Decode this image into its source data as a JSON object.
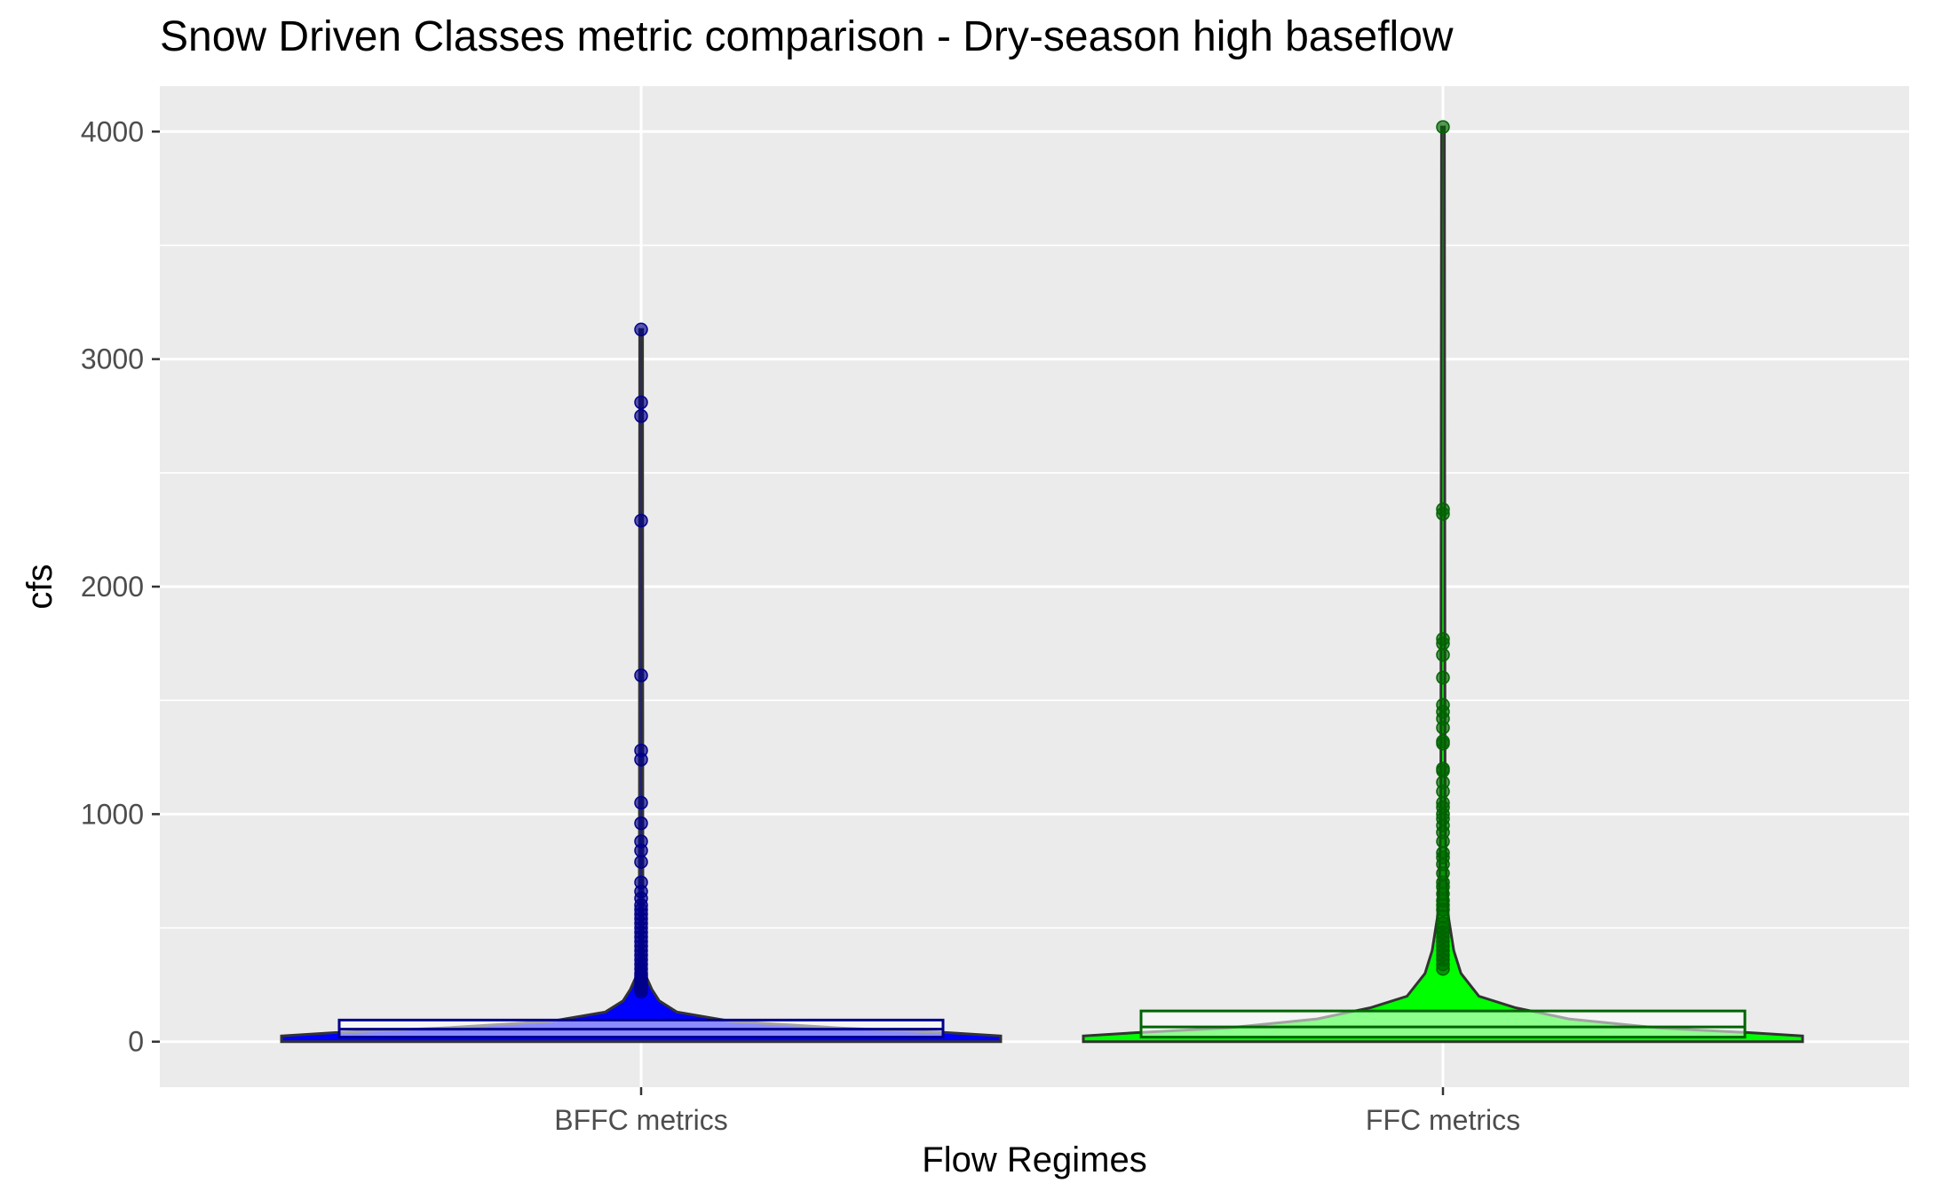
{
  "chart_data": {
    "type": "violin",
    "title": "Snow Driven Classes metric comparison - Dry-season high baseflow",
    "xlabel": "Flow Regimes",
    "ylabel": "cfs",
    "categories": [
      "BFFC metrics",
      "FFC metrics"
    ],
    "ylim": [
      -200,
      4200
    ],
    "yticks": [
      0,
      1000,
      2000,
      3000,
      4000
    ],
    "grid": true,
    "colors": {
      "panel": "#ebebeb",
      "grid": "#ffffff",
      "bffc_fill": "#0000ff",
      "bffc_point": "#00008b",
      "ffc_fill": "#00ff00",
      "ffc_point": "#006400"
    },
    "series": [
      {
        "category": "BFFC metrics",
        "box": {
          "q1": 20,
          "median": 55,
          "q3": 95
        },
        "max": 3130,
        "violin_profile": [
          [
            0,
            1.0
          ],
          [
            25,
            1.0
          ],
          [
            40,
            0.85
          ],
          [
            60,
            0.55
          ],
          [
            90,
            0.25
          ],
          [
            130,
            0.1
          ],
          [
            180,
            0.05
          ],
          [
            230,
            0.03
          ],
          [
            300,
            0.01
          ],
          [
            450,
            0.005
          ],
          [
            3130,
            0.004
          ]
        ],
        "points": [
          3130,
          2810,
          2750,
          2290,
          1610,
          1280,
          1240,
          1050,
          960,
          880,
          840,
          790,
          700,
          660,
          630,
          600,
          580,
          560,
          540,
          520,
          500,
          480,
          460,
          440,
          420,
          400,
          380,
          360,
          340,
          320,
          300,
          290,
          280,
          270,
          260,
          250,
          240,
          230,
          220
        ]
      },
      {
        "category": "FFC metrics",
        "box": {
          "q1": 20,
          "median": 65,
          "q3": 135
        },
        "max": 4020,
        "violin_profile": [
          [
            0,
            1.0
          ],
          [
            25,
            1.0
          ],
          [
            40,
            0.85
          ],
          [
            60,
            0.6
          ],
          [
            100,
            0.35
          ],
          [
            150,
            0.2
          ],
          [
            200,
            0.1
          ],
          [
            300,
            0.05
          ],
          [
            400,
            0.03
          ],
          [
            550,
            0.015
          ],
          [
            700,
            0.01
          ],
          [
            1000,
            0.006
          ],
          [
            4020,
            0.004
          ]
        ],
        "points": [
          4020,
          2340,
          2320,
          1770,
          1750,
          1700,
          1600,
          1480,
          1450,
          1420,
          1380,
          1320,
          1310,
          1200,
          1190,
          1140,
          1100,
          1050,
          1030,
          1000,
          980,
          950,
          920,
          880,
          830,
          810,
          780,
          740,
          700,
          680,
          650,
          620,
          600,
          580,
          550,
          520,
          500,
          480,
          460,
          440,
          420,
          400,
          380,
          360,
          340,
          320
        ]
      }
    ]
  }
}
